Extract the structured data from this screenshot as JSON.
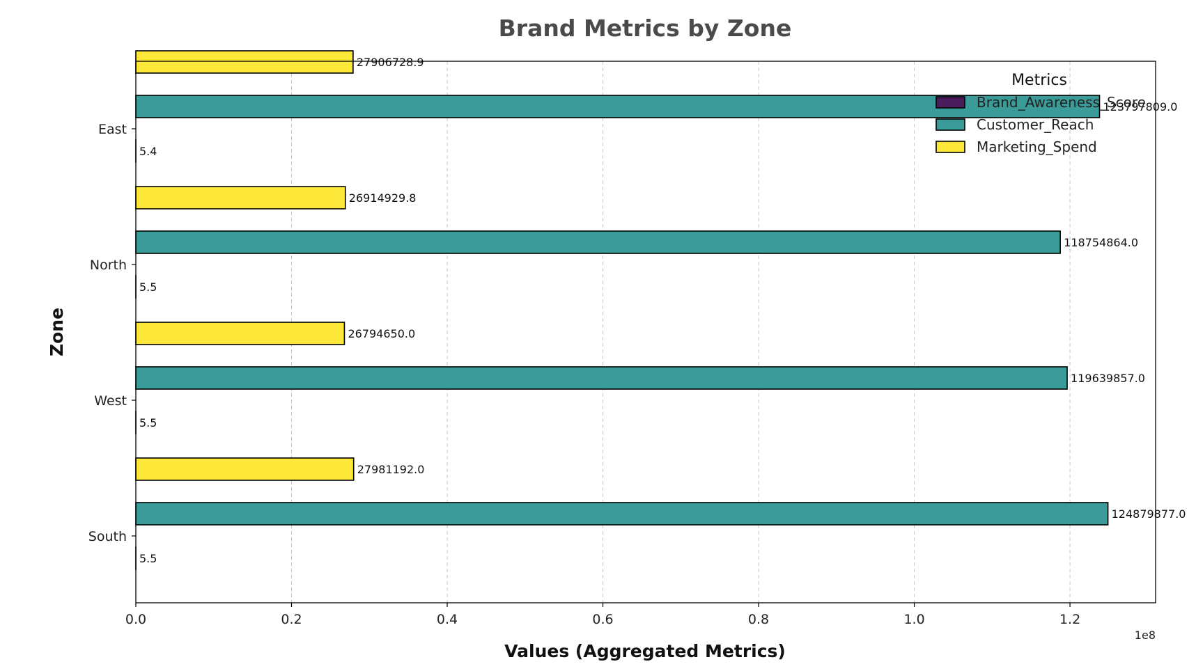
{
  "chart_data": {
    "type": "bar",
    "orientation": "horizontal",
    "title": "Brand Metrics by Zone",
    "xlabel": "Values (Aggregated Metrics)",
    "ylabel": "Zone",
    "x_scale_label": "1e8",
    "xlim": [
      0,
      131000000
    ],
    "x_ticks": [
      0,
      20000000,
      40000000,
      60000000,
      80000000,
      100000000,
      120000000
    ],
    "x_tick_labels": [
      "0.0",
      "0.2",
      "0.4",
      "0.6",
      "0.8",
      "1.0",
      "1.2"
    ],
    "categories": [
      "South",
      "West",
      "North",
      "East"
    ],
    "grid": "x-dashed",
    "legend": {
      "title": "Metrics",
      "placement": "top-right"
    },
    "series": [
      {
        "name": "Brand_Awareness_Score",
        "color": "#4b1d5c",
        "values": [
          5.5,
          5.5,
          5.5,
          5.4
        ],
        "labels": [
          "5.5",
          "5.5",
          "5.5",
          "5.4"
        ]
      },
      {
        "name": "Customer_Reach",
        "color": "#3a9b98",
        "values": [
          124879877.0,
          119639857.0,
          118754864.0,
          123797809.0
        ],
        "labels": [
          "124879877.0",
          "119639857.0",
          "118754864.0",
          "123797809.0"
        ]
      },
      {
        "name": "Marketing_Spend",
        "color": "#fde83a",
        "values": [
          27981192.0,
          26794650.0,
          26914929.8,
          27906728.9
        ],
        "labels": [
          "27981192.0",
          "26794650.0",
          "26914929.8",
          "27906728.9"
        ]
      }
    ]
  }
}
